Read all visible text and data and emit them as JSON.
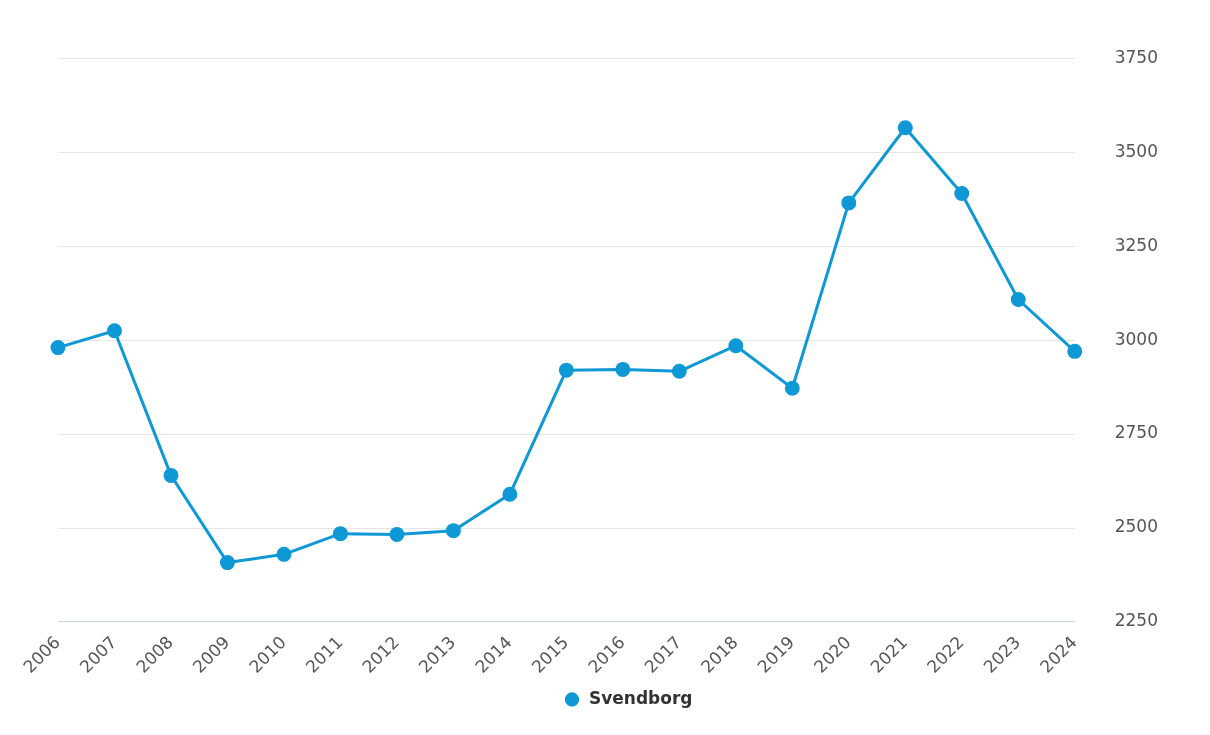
{
  "chart_data": {
    "type": "line",
    "categories": [
      "2006",
      "2007",
      "2008",
      "2009",
      "2010",
      "2011",
      "2012",
      "2013",
      "2014",
      "2015",
      "2016",
      "2017",
      "2018",
      "2019",
      "2020",
      "2021",
      "2022",
      "2023",
      "2024"
    ],
    "series": [
      {
        "name": "Svendborg",
        "color": "#0e98d6",
        "values": [
          2980,
          3025,
          2640,
          2408,
          2430,
          2485,
          2483,
          2493,
          2590,
          2920,
          2922,
          2917,
          2985,
          2872,
          3365,
          3565,
          3390,
          3108,
          2970
        ]
      }
    ],
    "ylim": [
      2250,
      3750
    ],
    "yticks": [
      2250,
      2500,
      2750,
      3000,
      3250,
      3500,
      3750
    ],
    "grid": "y",
    "legend": "bottom",
    "marker": "circle",
    "line_style": "solid"
  }
}
